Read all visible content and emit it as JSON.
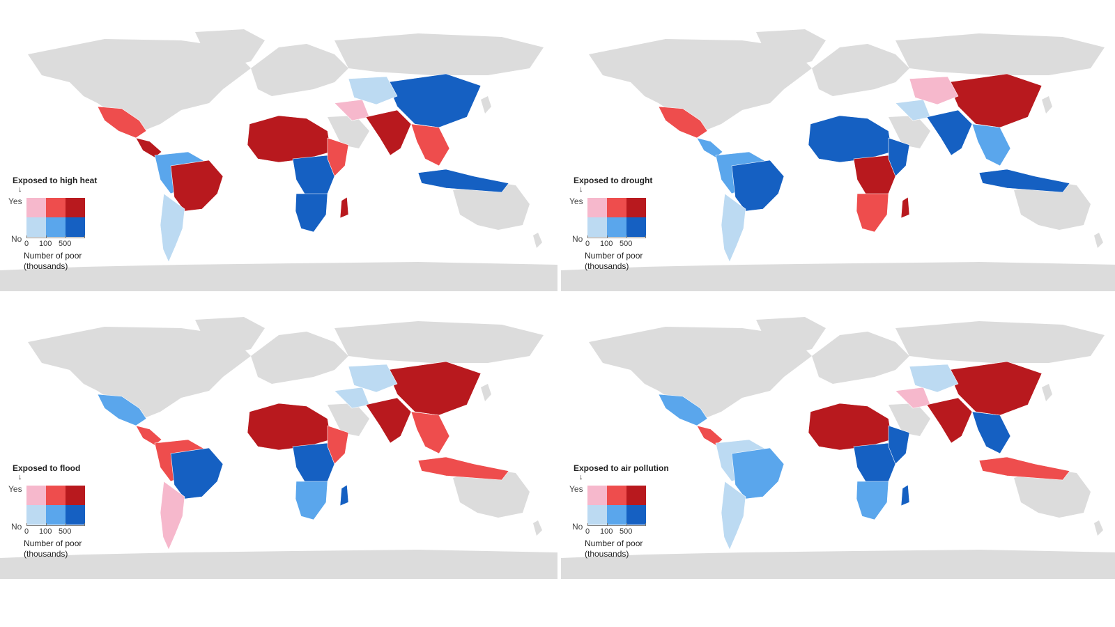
{
  "palette": {
    "land": "#dcdcdc",
    "yes_low": "#f6b8cc",
    "yes_mid": "#ee4d4d",
    "yes_high": "#b8191e",
    "no_low": "#bcdaf2",
    "no_mid": "#5aa6ec",
    "no_high": "#1560c2"
  },
  "legend_common": {
    "arrow": "↓",
    "yes_label": "Yes",
    "no_label": "No",
    "ticks": [
      "0",
      "100",
      "500"
    ],
    "caption_line1": "Number of poor",
    "caption_line2": "(thousands)"
  },
  "panels": [
    {
      "title": "Exposed to high heat",
      "regions": {
        "mexico": "yes_mid",
        "central_america": "yes_high",
        "south_america_north": "no_mid",
        "brazil": "yes_high",
        "south_america_south": "no_low",
        "west_africa": "yes_high",
        "central_africa": "no_high",
        "east_africa": "yes_mid",
        "southern_africa": "no_high",
        "madagascar": "yes_high",
        "middle_east": "yes_low",
        "india": "yes_high",
        "china": "no_high",
        "central_asia": "no_low",
        "southeast_asia": "yes_mid",
        "indonesia": "no_high"
      }
    },
    {
      "title": "Exposed to drought",
      "regions": {
        "mexico": "yes_mid",
        "central_america": "no_mid",
        "south_america_north": "no_mid",
        "brazil": "no_high",
        "south_america_south": "no_low",
        "west_africa": "no_high",
        "central_africa": "yes_high",
        "east_africa": "no_high",
        "southern_africa": "yes_mid",
        "madagascar": "yes_high",
        "middle_east": "no_low",
        "india": "no_high",
        "china": "yes_high",
        "central_asia": "yes_low",
        "southeast_asia": "no_mid",
        "indonesia": "no_high"
      }
    },
    {
      "title": "Exposed to flood",
      "regions": {
        "mexico": "no_mid",
        "central_america": "yes_mid",
        "south_america_north": "yes_mid",
        "brazil": "no_high",
        "south_america_south": "yes_low",
        "west_africa": "yes_high",
        "central_africa": "no_high",
        "east_africa": "yes_mid",
        "southern_africa": "no_mid",
        "madagascar": "no_high",
        "middle_east": "no_low",
        "india": "yes_high",
        "china": "yes_high",
        "central_asia": "no_low",
        "southeast_asia": "yes_mid",
        "indonesia": "yes_mid"
      }
    },
    {
      "title": "Exposed to air pollution",
      "regions": {
        "mexico": "no_mid",
        "central_america": "yes_mid",
        "south_america_north": "no_low",
        "brazil": "no_mid",
        "south_america_south": "no_low",
        "west_africa": "yes_high",
        "central_africa": "no_high",
        "east_africa": "no_high",
        "southern_africa": "no_mid",
        "madagascar": "no_high",
        "middle_east": "yes_low",
        "india": "yes_high",
        "china": "yes_high",
        "central_asia": "no_low",
        "southeast_asia": "no_high",
        "indonesia": "yes_mid"
      }
    }
  ]
}
